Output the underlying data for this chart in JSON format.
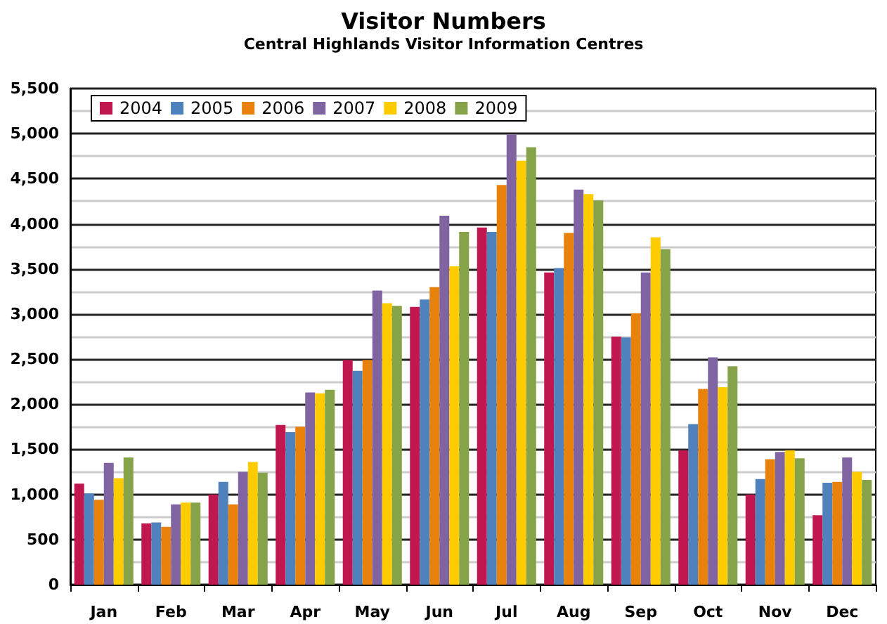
{
  "chart_data": {
    "type": "bar",
    "title": "Visitor Numbers",
    "subtitle": "Central Highlands Visitor Information Centres",
    "categories": [
      "Jan",
      "Feb",
      "Mar",
      "Apr",
      "May",
      "Jun",
      "Jul",
      "Aug",
      "Sep",
      "Oct",
      "Nov",
      "Dec"
    ],
    "series": [
      {
        "name": "2004",
        "color": "#c0174f",
        "values": [
          1120,
          680,
          1000,
          1770,
          2490,
          3080,
          3960,
          3460,
          2750,
          1490,
          1000,
          770
        ]
      },
      {
        "name": "2005",
        "color": "#4f81bd",
        "values": [
          1010,
          690,
          1140,
          1690,
          2370,
          3160,
          3910,
          3510,
          2740,
          1780,
          1170,
          1130
        ]
      },
      {
        "name": "2006",
        "color": "#e8820c",
        "values": [
          940,
          640,
          890,
          1750,
          2490,
          3300,
          4430,
          3900,
          3010,
          2170,
          1390,
          1140
        ]
      },
      {
        "name": "2007",
        "color": "#8064a2",
        "values": [
          1350,
          890,
          1250,
          2130,
          3260,
          4090,
          4990,
          4380,
          3460,
          2520,
          1470,
          1410
        ]
      },
      {
        "name": "2008",
        "color": "#ffcc00",
        "values": [
          1180,
          910,
          1360,
          2120,
          3120,
          3530,
          4700,
          4330,
          3850,
          2190,
          1490,
          1250
        ]
      },
      {
        "name": "2009",
        "color": "#86a34a",
        "values": [
          1410,
          910,
          1240,
          2160,
          3090,
          3910,
          4850,
          4260,
          3720,
          2420,
          1400,
          1160
        ]
      }
    ],
    "ylim": [
      0,
      5500
    ],
    "yticks": [
      0,
      500,
      {
        "value": 1000,
        "label": "1,000"
      },
      {
        "value": 1500,
        "label": "1,500"
      },
      {
        "value": 2000,
        "label": "2,000"
      },
      {
        "value": 2500,
        "label": "2,500"
      },
      {
        "value": 3000,
        "label": "3,000"
      },
      {
        "value": 3500,
        "label": "3,500"
      },
      {
        "value": 4000,
        "label": "4,000"
      },
      {
        "value": 4500,
        "label": "4,500"
      },
      {
        "value": 5000,
        "label": "5,000"
      },
      {
        "value": 5500,
        "label": "5,500"
      }
    ],
    "grid": "y",
    "legend": "top left"
  }
}
